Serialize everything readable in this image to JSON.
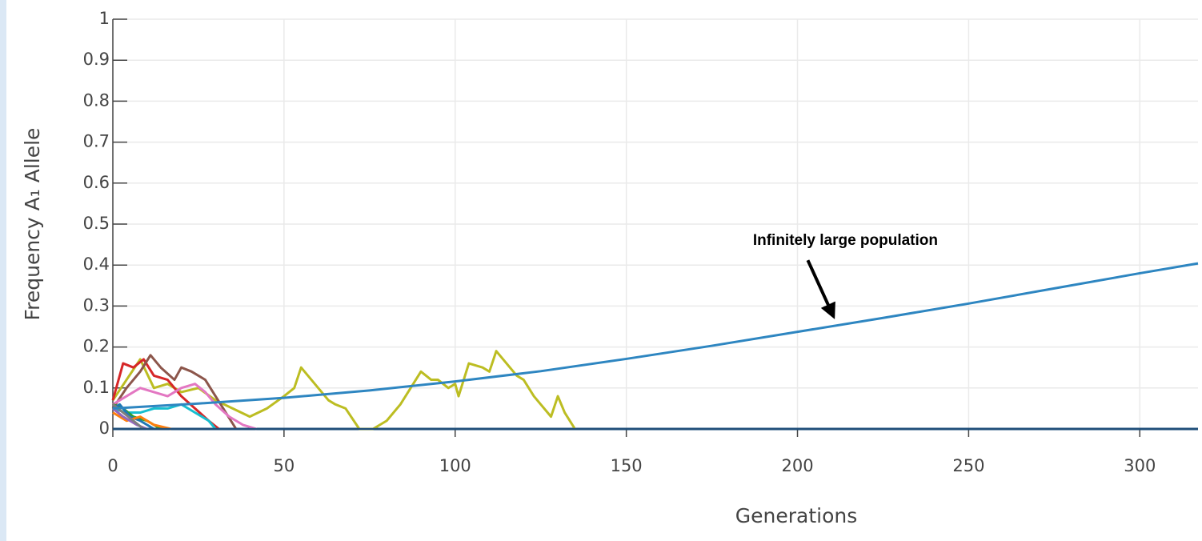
{
  "chart_data": {
    "type": "line",
    "x_label": "Generations",
    "y_label": "Frequency A₁ Allele",
    "xlim": [
      0,
      317
    ],
    "xticks": [
      0,
      50,
      100,
      150,
      200,
      250,
      300
    ],
    "ylim": [
      0,
      1
    ],
    "yticks": [
      0,
      0.1,
      0.2,
      0.3,
      0.4,
      0.5,
      0.6,
      0.7,
      0.8,
      0.9,
      1
    ],
    "grid": true,
    "annotations": [
      {
        "text": "Infinitely large population",
        "x": 210.5,
        "y": 0.275
      }
    ],
    "series": [
      {
        "color": "#1f4e79",
        "x": [
          0,
          317
        ],
        "values": [
          0,
          0
        ]
      },
      {
        "color": "#bcbd22",
        "x": [
          0,
          4,
          8,
          12,
          16,
          20,
          25,
          30,
          35,
          40,
          45,
          50,
          53,
          55,
          57,
          60,
          63,
          65,
          68,
          72,
          76,
          80,
          84,
          87,
          90,
          93,
          95,
          98,
          100,
          101,
          104,
          108,
          110,
          112,
          115,
          118,
          120,
          123,
          125,
          128,
          130,
          132,
          135
        ],
        "values": [
          0.07,
          0.12,
          0.17,
          0.1,
          0.11,
          0.09,
          0.1,
          0.07,
          0.05,
          0.03,
          0.05,
          0.08,
          0.1,
          0.15,
          0.13,
          0.1,
          0.07,
          0.06,
          0.05,
          0,
          0,
          0.02,
          0.06,
          0.1,
          0.14,
          0.12,
          0.12,
          0.1,
          0.11,
          0.08,
          0.16,
          0.15,
          0.14,
          0.19,
          0.16,
          0.13,
          0.12,
          0.08,
          0.06,
          0.03,
          0.08,
          0.04,
          0
        ]
      },
      {
        "color": "#d62728",
        "x": [
          0,
          3,
          6,
          9,
          12,
          16,
          20,
          24,
          28,
          31
        ],
        "values": [
          0.07,
          0.16,
          0.15,
          0.17,
          0.13,
          0.12,
          0.08,
          0.05,
          0.02,
          0
        ]
      },
      {
        "color": "#8c564b",
        "x": [
          0,
          4,
          8,
          11,
          14,
          18,
          20,
          23,
          27,
          30,
          33,
          36
        ],
        "values": [
          0.05,
          0.1,
          0.14,
          0.18,
          0.15,
          0.12,
          0.15,
          0.14,
          0.12,
          0.08,
          0.04,
          0
        ]
      },
      {
        "color": "#e377c2",
        "x": [
          0,
          4,
          8,
          12,
          16,
          20,
          24,
          27,
          30,
          34,
          38,
          42
        ],
        "values": [
          0.06,
          0.08,
          0.1,
          0.09,
          0.08,
          0.1,
          0.11,
          0.09,
          0.06,
          0.03,
          0.01,
          0
        ]
      },
      {
        "color": "#17becf",
        "x": [
          0,
          4,
          8,
          12,
          16,
          20,
          24,
          28,
          30
        ],
        "values": [
          0.05,
          0.04,
          0.04,
          0.05,
          0.05,
          0.06,
          0.04,
          0.02,
          0
        ]
      },
      {
        "color": "#2ca02c",
        "x": [
          0,
          3,
          6,
          10,
          14
        ],
        "values": [
          0.06,
          0.05,
          0.03,
          0.02,
          0
        ]
      },
      {
        "color": "#1f77b4",
        "x": [
          0,
          2,
          5,
          8,
          12
        ],
        "values": [
          0.05,
          0.06,
          0.03,
          0.02,
          0
        ]
      },
      {
        "color": "#ff7f0e",
        "x": [
          0,
          4,
          8,
          12,
          17
        ],
        "values": [
          0.04,
          0.02,
          0.03,
          0.01,
          0
        ]
      },
      {
        "color": "#9467bd",
        "x": [
          0,
          3,
          7,
          10
        ],
        "values": [
          0.05,
          0.03,
          0.01,
          0
        ]
      },
      {
        "color": "#7f7f7f",
        "x": [
          0,
          3,
          6,
          9
        ],
        "values": [
          0.06,
          0.04,
          0.02,
          0
        ]
      },
      {
        "color": "#2e86c1",
        "x": [
          0,
          25,
          50,
          75,
          100,
          125,
          150,
          175,
          200,
          225,
          250,
          275,
          300,
          317
        ],
        "values": [
          0.05,
          0.062,
          0.076,
          0.094,
          0.116,
          0.141,
          0.171,
          0.203,
          0.237,
          0.271,
          0.306,
          0.343,
          0.38,
          0.404
        ]
      }
    ]
  }
}
